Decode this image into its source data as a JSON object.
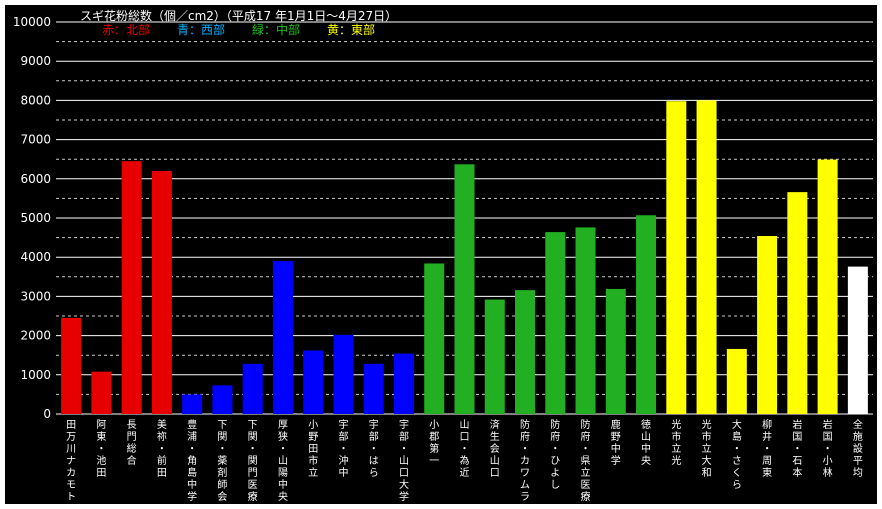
{
  "chart_data": {
    "type": "bar",
    "title": "スギ花粉総数（個／cm2）（平成17 年1月1日〜4月27日）",
    "legend": [
      {
        "label": "赤：北部",
        "color": "#e60000"
      },
      {
        "label": "青：西部",
        "color": "#00b0ff"
      },
      {
        "label": "緑：中部",
        "color": "#22c022"
      },
      {
        "label": "黄：東部",
        "color": "#ffff00"
      }
    ],
    "ylim": [
      0,
      10000
    ],
    "yticks": [
      0,
      1000,
      2000,
      3000,
      4000,
      5000,
      6000,
      7000,
      8000,
      9000,
      10000
    ],
    "grid": true,
    "categories": [
      "田万川ナカモト",
      "阿東・池田",
      "長門総合",
      "美祢・前田",
      "豊浦・角島中学",
      "下関・薬剤師会",
      "下関・関門医療",
      "厚狭・山陽中央",
      "小野田市立",
      "宇部・沖中",
      "宇部・はら",
      "宇部・山口大学",
      "小郡第一",
      "山口・為近",
      "済生会山口",
      "防府・カワムラ",
      "防府・ひよし",
      "防府・県立医療",
      "鹿野中学",
      "徳山中央",
      "光市立光",
      "光市立大和",
      "大島・さくら",
      "柳井・周東",
      "岩国・石本",
      "岩国・小林",
      "全施設平均"
    ],
    "values": [
      2450,
      1080,
      6450,
      6200,
      500,
      730,
      1280,
      3900,
      1620,
      2020,
      1280,
      1540,
      3840,
      6370,
      2920,
      3160,
      4640,
      4760,
      3190,
      5070,
      7980,
      8000,
      1660,
      4540,
      5660,
      6490,
      3760
    ],
    "bar_colors": [
      "#e60000",
      "#e60000",
      "#e60000",
      "#e60000",
      "#0000ff",
      "#0000ff",
      "#0000ff",
      "#0000ff",
      "#0000ff",
      "#0000ff",
      "#0000ff",
      "#0000ff",
      "#22b022",
      "#22b022",
      "#22b022",
      "#22b022",
      "#22b022",
      "#22b022",
      "#22b022",
      "#22b022",
      "#ffff00",
      "#ffff00",
      "#ffff00",
      "#ffff00",
      "#ffff00",
      "#ffff00",
      "#ffffff"
    ]
  },
  "colors": {
    "background": "#000000",
    "grid_solid": "#ffffff",
    "grid_dashed": "#ffffff",
    "text": "#ffffff"
  }
}
